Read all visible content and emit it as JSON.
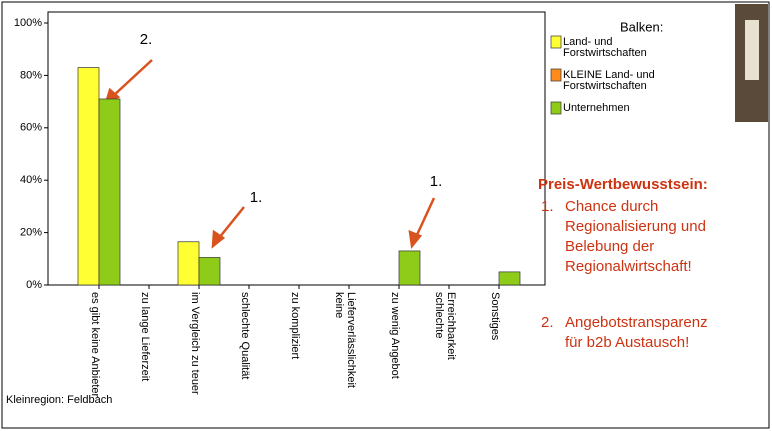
{
  "chart_data": {
    "type": "bar",
    "legend_title": "Balken:",
    "categories": [
      "es gibt keine Anbieter",
      "zu lange Lieferzeit",
      "im Vergleich zu teuer",
      "schlechte Qualität",
      "zu kompliziert",
      [
        "keine",
        "Lieferverlässlichkeit"
      ],
      "zu wenig Angebot",
      [
        "schlechte",
        "Erreichbarkeit"
      ],
      "Sonstiges"
    ],
    "series": [
      {
        "name": [
          "Land- und",
          "Forstwirtschaften"
        ],
        "color": "#ffff33",
        "values": [
          83,
          null,
          16.5,
          null,
          null,
          null,
          null,
          null,
          null
        ]
      },
      {
        "name": [
          "KLEINE Land- und",
          "Forstwirtschaften"
        ],
        "color": "#ff8c1a",
        "values": [
          null,
          null,
          null,
          null,
          null,
          null,
          null,
          null,
          null
        ]
      },
      {
        "name": [
          "Unternehmen"
        ],
        "color": "#8fcc1a",
        "values": [
          71,
          null,
          10.5,
          null,
          null,
          null,
          13,
          null,
          5
        ]
      }
    ],
    "ylim": [
      0,
      100
    ],
    "yticks": [
      {
        "value": 0,
        "label": "0%"
      },
      {
        "value": 20,
        "label": "20%"
      },
      {
        "value": 40,
        "label": "40%"
      },
      {
        "value": 60,
        "label": "60%"
      },
      {
        "value": 80,
        "label": "80%"
      },
      {
        "value": 100,
        "label": "100%"
      }
    ],
    "annotations": [
      "2.",
      "1.",
      "1."
    ],
    "footnote": "Kleinregion: Feldbach",
    "side_note": {
      "title": "Preis-Wertbewusstsein:",
      "items": [
        {
          "number": "1.",
          "lines": [
            "Chance durch",
            "Regionalisierung und",
            "Belebung der",
            "Regionalwirtschaft!"
          ]
        },
        {
          "number": "2.",
          "lines": [
            "Angebotstransparenz",
            "für b2b Austausch!"
          ]
        }
      ]
    }
  }
}
